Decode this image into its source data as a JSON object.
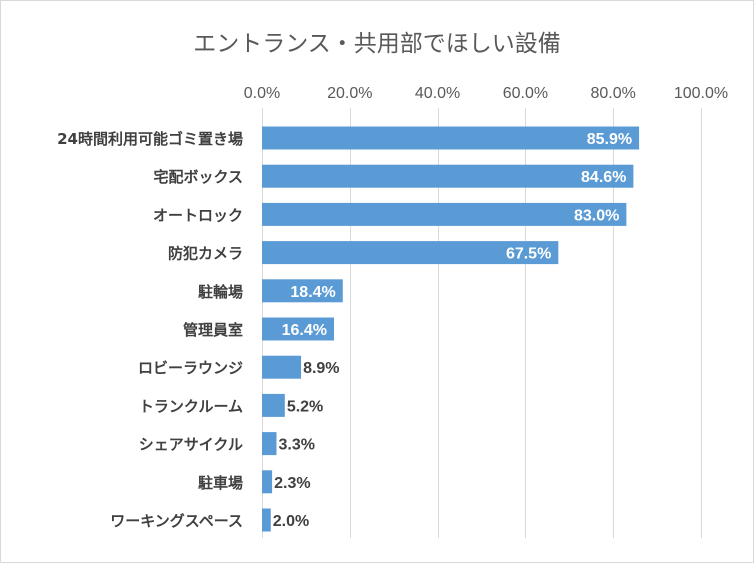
{
  "chart_data": {
    "type": "bar",
    "orientation": "horizontal",
    "title": "エントランス・共用部でほしい設備",
    "xlabel": "",
    "ylabel": "",
    "xlim": [
      0,
      100
    ],
    "tick_values": [
      0,
      20,
      40,
      60,
      80,
      100
    ],
    "tick_labels": [
      "0.0%",
      "20.0%",
      "40.0%",
      "60.0%",
      "80.0%",
      "100.0%"
    ],
    "axis_position": "top",
    "grid": true,
    "legend": "none",
    "categories": [
      "24時間利用可能ゴミ置き場",
      "宅配ボックス",
      "オートロック",
      "防犯カメラ",
      "駐輪場",
      "管理員室",
      "ロビーラウンジ",
      "トランクルーム",
      "シェアサイクル",
      "駐車場",
      "ワーキングスペース"
    ],
    "values": [
      85.9,
      84.6,
      83.0,
      67.5,
      18.4,
      16.4,
      8.9,
      5.2,
      3.3,
      2.3,
      2.0
    ],
    "data_labels": [
      "85.9%",
      "84.6%",
      "83.0%",
      "67.5%",
      "18.4%",
      "16.4%",
      "8.9%",
      "5.2%",
      "3.3%",
      "2.3%",
      "2.0%"
    ],
    "inside_label_threshold": 10,
    "colors": {
      "bar": "#5b9bd5",
      "label_inside": "#ffffff",
      "label_outside": "#404040"
    }
  }
}
